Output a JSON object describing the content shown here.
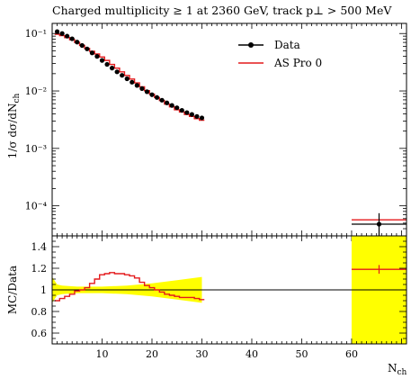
{
  "chart_data": {
    "type": "scatter",
    "title": "Charged multiplicity ≥ 1 at 2360 GeV, track p⊥ > 500 MeV",
    "main": {
      "ylabel": "1/σ dσ/dN_ch",
      "yscale": "log",
      "ylim": [
        3e-05,
        0.15
      ],
      "ytick_values": [
        0.1,
        0.01,
        0.001,
        0.0001
      ],
      "ytick_labels": [
        "10⁻¹",
        "10⁻²",
        "10⁻³",
        "10⁻⁴"
      ]
    },
    "ratio": {
      "ylabel": "MC/Data",
      "ylim": [
        0.5,
        1.5
      ],
      "ytick_values": [
        0.6,
        0.8,
        1.0,
        1.2,
        1.4
      ],
      "ytick_labels": [
        "0.6",
        "0.8",
        "1",
        "1.2",
        "1.4"
      ]
    },
    "xlabel": "N_ch",
    "xlim": [
      0,
      71
    ],
    "xtick_values": [
      10,
      20,
      30,
      40,
      50,
      60
    ],
    "xtick_labels": [
      "10",
      "20",
      "30",
      "40",
      "50",
      "60"
    ],
    "legend_position": "top-right",
    "series": [
      {
        "name": "Data",
        "color": "#000000",
        "marker": "circle",
        "x": [
          1,
          2,
          3,
          4,
          5,
          6,
          7,
          8,
          9,
          10,
          11,
          12,
          13,
          14,
          15,
          16,
          17,
          18,
          19,
          20,
          21,
          22,
          23,
          24,
          25,
          26,
          27,
          28,
          29,
          30,
          65.5
        ],
        "y": [
          0.108,
          0.1,
          0.09,
          0.081,
          0.071,
          0.062,
          0.054,
          0.046,
          0.04,
          0.034,
          0.029,
          0.025,
          0.0215,
          0.0187,
          0.0163,
          0.0142,
          0.0125,
          0.011,
          0.0097,
          0.0086,
          0.0077,
          0.0069,
          0.0062,
          0.0056,
          0.0051,
          0.0046,
          0.0042,
          0.0039,
          0.0036,
          0.0034,
          4.8e-05
        ],
        "yerr_rel": [
          0.02,
          0.02,
          0.02,
          0.02,
          0.02,
          0.02,
          0.02,
          0.02,
          0.02,
          0.02,
          0.02,
          0.02,
          0.02,
          0.02,
          0.02,
          0.02,
          0.02,
          0.02,
          0.02,
          0.02,
          0.02,
          0.02,
          0.02,
          0.02,
          0.02,
          0.02,
          0.02,
          0.02,
          0.02,
          0.02,
          0.55
        ],
        "xerr": [
          0,
          0,
          0,
          0,
          0,
          0,
          0,
          0,
          0,
          0,
          0,
          0,
          0,
          0,
          0,
          0,
          0,
          0,
          0,
          0,
          0,
          0,
          0,
          0,
          0,
          0,
          0,
          0,
          0,
          0,
          5.5
        ]
      },
      {
        "name": "AS Pro 0",
        "color": "#e41a1c",
        "style": "step",
        "bin_edges": [
          0.5,
          1.5,
          2.5,
          3.5,
          4.5,
          5.5,
          6.5,
          7.5,
          8.5,
          9.5,
          10.5,
          11.5,
          12.5,
          13.5,
          14.5,
          15.5,
          16.5,
          17.5,
          18.5,
          19.5,
          20.5,
          21.5,
          22.5,
          23.5,
          24.5,
          25.5,
          26.5,
          27.5,
          28.5,
          29.5,
          30.5
        ],
        "y": [
          0.097,
          0.092,
          0.085,
          0.078,
          0.07,
          0.062,
          0.055,
          0.049,
          0.044,
          0.039,
          0.034,
          0.029,
          0.025,
          0.0215,
          0.0186,
          0.0161,
          0.0138,
          0.0118,
          0.0101,
          0.0088,
          0.0077,
          0.0068,
          0.0059,
          0.0053,
          0.0047,
          0.0043,
          0.0039,
          0.0036,
          0.0033,
          0.0031
        ],
        "extra_bin": [
          60,
          71
        ],
        "extra_y": 5.7e-05
      }
    ],
    "ratio_series": {
      "bin_edges": [
        0.5,
        1.5,
        2.5,
        3.5,
        4.5,
        5.5,
        6.5,
        7.5,
        8.5,
        9.5,
        10.5,
        11.5,
        12.5,
        13.5,
        14.5,
        15.5,
        16.5,
        17.5,
        18.5,
        19.5,
        20.5,
        21.5,
        22.5,
        23.5,
        24.5,
        25.5,
        26.5,
        27.5,
        28.5,
        29.5,
        30.5
      ],
      "values": [
        0.9,
        0.92,
        0.94,
        0.96,
        0.99,
        1.0,
        1.02,
        1.06,
        1.1,
        1.14,
        1.15,
        1.16,
        1.15,
        1.15,
        1.14,
        1.13,
        1.11,
        1.07,
        1.04,
        1.02,
        1.0,
        0.98,
        0.96,
        0.95,
        0.94,
        0.93,
        0.93,
        0.93,
        0.92,
        0.91
      ],
      "extra_bin": [
        60,
        71
      ],
      "extra_value": 1.19,
      "extra_err": 0.04
    },
    "data_band": {
      "x": [
        0,
        1,
        2,
        5,
        10,
        15,
        20,
        25,
        30
      ],
      "lo": [
        0.88,
        0.95,
        0.96,
        0.97,
        0.97,
        0.96,
        0.94,
        0.91,
        0.88
      ],
      "hi": [
        1.12,
        1.05,
        1.04,
        1.03,
        1.03,
        1.04,
        1.06,
        1.09,
        1.12
      ],
      "extra_x": [
        60,
        71
      ],
      "extra_lo": 0.5,
      "extra_hi": 1.5
    }
  }
}
